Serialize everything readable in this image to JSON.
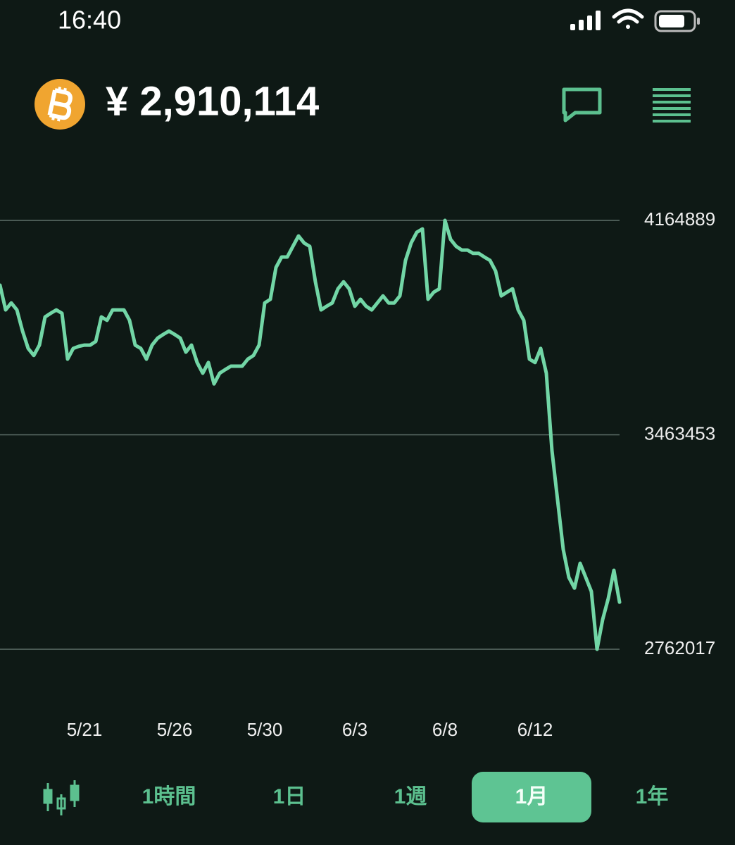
{
  "status_bar": {
    "time": "16:40"
  },
  "header": {
    "price": "¥ 2,910,114"
  },
  "chart_data": {
    "type": "line",
    "color": "#72d6a6",
    "categories": [
      null,
      null,
      null,
      null,
      null,
      null,
      null,
      null,
      null,
      null,
      null,
      null,
      null,
      null,
      null,
      "5/21",
      null,
      null,
      null,
      null,
      null,
      null,
      null,
      null,
      null,
      null,
      null,
      null,
      null,
      null,
      null,
      "5/26",
      null,
      null,
      null,
      null,
      null,
      null,
      null,
      null,
      null,
      null,
      null,
      null,
      null,
      null,
      null,
      "5/30",
      null,
      null,
      null,
      null,
      null,
      null,
      null,
      null,
      null,
      null,
      null,
      null,
      null,
      null,
      null,
      "6/3",
      null,
      null,
      null,
      null,
      null,
      null,
      null,
      null,
      null,
      null,
      null,
      null,
      null,
      null,
      null,
      "6/8",
      null,
      null,
      null,
      null,
      null,
      null,
      null,
      null,
      null,
      null,
      null,
      null,
      null,
      null,
      null,
      "6/12",
      null,
      null,
      null,
      null,
      null,
      null,
      null,
      null,
      null,
      null,
      null,
      null,
      null,
      null,
      null
    ],
    "values": [
      3953000,
      3872000,
      3895000,
      3872000,
      3803000,
      3746000,
      3723000,
      3757000,
      3849000,
      3861000,
      3872000,
      3861000,
      3711000,
      3746000,
      3753000,
      3757000,
      3757000,
      3769000,
      3849000,
      3838000,
      3872000,
      3872000,
      3872000,
      3838000,
      3757000,
      3746000,
      3711000,
      3757000,
      3780000,
      3792000,
      3803000,
      3792000,
      3780000,
      3734000,
      3757000,
      3700000,
      3665000,
      3700000,
      3630000,
      3665000,
      3677000,
      3688000,
      3688000,
      3688000,
      3711000,
      3723000,
      3757000,
      3895000,
      3907000,
      4011000,
      4045000,
      4045000,
      4080000,
      4114000,
      4091000,
      4080000,
      3964000,
      3872000,
      3884000,
      3895000,
      3941000,
      3964000,
      3941000,
      3884000,
      3907000,
      3884000,
      3872000,
      3895000,
      3918000,
      3895000,
      3895000,
      3918000,
      4034000,
      4091000,
      4126000,
      4137000,
      3907000,
      3930000,
      3941000,
      4164889,
      4103000,
      4080000,
      4068000,
      4068000,
      4057000,
      4057000,
      4045000,
      4034000,
      3999000,
      3918000,
      3930000,
      3941000,
      3872000,
      3838000,
      3711000,
      3700000,
      3746000,
      3665000,
      3412000,
      3250000,
      3089000,
      2997000,
      2962000,
      3043000,
      2997000,
      2951000,
      2762017,
      2859000,
      2928000,
      3020000,
      2916000
    ],
    "ylim": [
      2762017,
      4164889
    ],
    "yticks": [
      2762017,
      3463453,
      4164889
    ],
    "grid": true
  },
  "tabs": {
    "items": [
      "1時間",
      "1日",
      "1週",
      "1月",
      "1年"
    ],
    "active": 3
  }
}
